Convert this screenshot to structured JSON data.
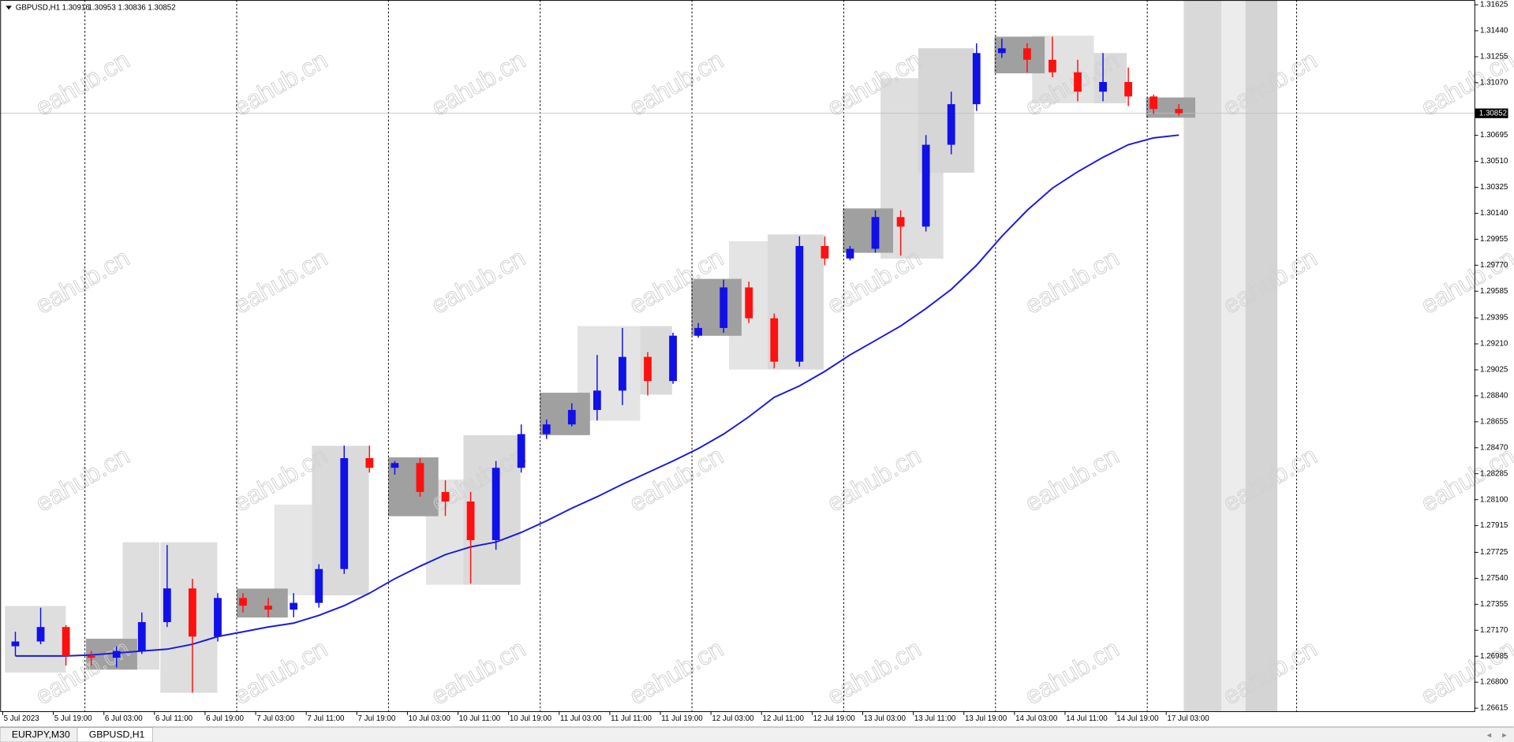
{
  "chart_data": {
    "type": "candlestick",
    "symbol": "GBPUSD,H1",
    "header_ohlc": [
      1.30916,
      1.30953,
      1.30836,
      1.30852
    ],
    "x": [
      "5 Jul 11:00",
      "5 Jul 15:00",
      "5 Jul 19:00",
      "5 Jul 23:00",
      "6 Jul 03:00",
      "6 Jul 07:00",
      "6 Jul 11:00",
      "6 Jul 15:00",
      "6 Jul 19:00",
      "6 Jul 23:00",
      "7 Jul 03:00",
      "7 Jul 07:00",
      "7 Jul 11:00",
      "7 Jul 15:00",
      "7 Jul 19:00",
      "7 Jul 23:00",
      "10 Jul 03:00",
      "10 Jul 07:00",
      "10 Jul 11:00",
      "10 Jul 15:00",
      "10 Jul 19:00",
      "10 Jul 23:00",
      "11 Jul 03:00",
      "11 Jul 07:00",
      "11 Jul 11:00",
      "11 Jul 15:00",
      "11 Jul 19:00",
      "11 Jul 23:00",
      "12 Jul 03:00",
      "12 Jul 07:00",
      "12 Jul 11:00",
      "12 Jul 15:00",
      "12 Jul 19:00",
      "12 Jul 23:00",
      "13 Jul 03:00",
      "13 Jul 07:00",
      "13 Jul 11:00",
      "13 Jul 15:00",
      "13 Jul 19:00",
      "13 Jul 23:00",
      "14 Jul 03:00",
      "14 Jul 07:00",
      "14 Jul 11:00",
      "14 Jul 15:00",
      "14 Jul 19:00",
      "14 Jul 23:00",
      "17 Jul 03:00"
    ],
    "open": [
      1.27056,
      1.2709,
      1.27193,
      1.26987,
      1.26974,
      1.27022,
      1.27228,
      1.27468,
      1.27125,
      1.274,
      1.27345,
      1.27317,
      1.27365,
      1.27606,
      1.28396,
      1.28327,
      1.28361,
      1.28155,
      1.28087,
      1.27812,
      1.28327,
      1.28567,
      1.28636,
      1.28739,
      1.28877,
      1.29117,
      1.28945,
      1.29268,
      1.29323,
      1.29612,
      1.29392,
      1.29083,
      1.29907,
      1.29818,
      1.29887,
      1.30113,
      1.30045,
      1.30628,
      1.30917,
      1.31281,
      1.31315,
      1.31233,
      1.31144,
      1.31006,
      1.31075,
      1.30972,
      1.30883
    ],
    "high": [
      1.27159,
      1.27331,
      1.27207,
      1.27022,
      1.27056,
      1.27297,
      1.27777,
      1.27537,
      1.27434,
      1.27434,
      1.274,
      1.27434,
      1.2764,
      1.28485,
      1.28485,
      1.28375,
      1.28396,
      1.28238,
      1.28155,
      1.28375,
      1.28636,
      1.28671,
      1.28787,
      1.29131,
      1.29323,
      1.29151,
      1.29289,
      1.29358,
      1.29667,
      1.29653,
      1.29426,
      1.29976,
      1.29976,
      1.29907,
      1.30161,
      1.30161,
      1.30697,
      1.31006,
      1.3135,
      1.31384,
      1.3135,
      1.31398,
      1.31233,
      1.31281,
      1.31178,
      1.30986,
      1.30917
    ],
    "low": [
      1.26987,
      1.2707,
      1.26919,
      1.26919,
      1.26905,
      1.27001,
      1.27193,
      1.26726,
      1.2709,
      1.27297,
      1.27262,
      1.27262,
      1.27331,
      1.27571,
      1.28293,
      1.28279,
      1.28121,
      1.27984,
      1.27503,
      1.27743,
      1.28293,
      1.28533,
      1.28622,
      1.28664,
      1.28774,
      1.28842,
      1.28925,
      1.29254,
      1.29289,
      1.29358,
      1.29035,
      1.29048,
      1.2977,
      1.29804,
      1.29859,
      1.29838,
      1.3001,
      1.3056,
      1.30869,
      1.31247,
      1.31144,
      1.31109,
      1.30938,
      1.30938,
      1.30903,
      1.30848,
      1.30835
    ],
    "close": [
      1.2709,
      1.27193,
      1.26987,
      1.26974,
      1.27022,
      1.27228,
      1.27468,
      1.27125,
      1.274,
      1.27345,
      1.27317,
      1.27365,
      1.27606,
      1.28396,
      1.28327,
      1.28361,
      1.28155,
      1.28087,
      1.27812,
      1.28327,
      1.28567,
      1.28636,
      1.28739,
      1.28877,
      1.29117,
      1.28945,
      1.29268,
      1.29323,
      1.29612,
      1.29392,
      1.29083,
      1.29907,
      1.29818,
      1.29887,
      1.30113,
      1.30045,
      1.30628,
      1.30917,
      1.31281,
      1.31315,
      1.31233,
      1.31144,
      1.31006,
      1.31075,
      1.30972,
      1.30883,
      1.30852
    ],
    "up_color": "#1010e8",
    "down_color": "#ff1010",
    "ma": {
      "color": "#1a1ae0",
      "values": [
        1.26987,
        1.26987,
        1.26987,
        1.26994,
        1.27008,
        1.27022,
        1.27035,
        1.2707,
        1.27125,
        1.27159,
        1.27193,
        1.27221,
        1.27276,
        1.27345,
        1.27434,
        1.27537,
        1.27626,
        1.27709,
        1.27764,
        1.27798,
        1.27867,
        1.27949,
        1.28039,
        1.28121,
        1.2821,
        1.28293,
        1.28375,
        1.28464,
        1.28567,
        1.28691,
        1.28829,
        1.28911,
        1.29014,
        1.29131,
        1.29234,
        1.29337,
        1.29461,
        1.29598,
        1.2977,
        1.29976,
        1.30161,
        1.30319,
        1.30436,
        1.30539,
        1.30628,
        1.30677,
        1.30697
      ]
    },
    "bid": 1.30852,
    "ylim": [
      1.26594,
      1.31659
    ],
    "yticks": [
      1.31625,
      {
        "value": 1.3144,
        "label": "1.31440"
      },
      1.31255,
      {
        "value": 1.3107,
        "label": "1.31070"
      },
      1.30695,
      {
        "value": 1.3051,
        "label": "1.30510"
      },
      1.30325,
      {
        "value": 1.3014,
        "label": "1.30140"
      },
      1.29955,
      {
        "value": 1.2977,
        "label": "1.29770"
      },
      1.29585,
      1.29395,
      {
        "value": 1.2921,
        "label": "1.29210"
      },
      1.29025,
      {
        "value": 1.2884,
        "label": "1.28840"
      },
      1.28655,
      {
        "value": 1.2847,
        "label": "1.28470"
      },
      1.28285,
      {
        "value": 1.281,
        "label": "1.28100"
      },
      1.27915,
      1.27725,
      {
        "value": 1.2754,
        "label": "1.27540"
      },
      1.27355,
      {
        "value": 1.2717,
        "label": "1.27170"
      },
      1.26985,
      {
        "value": 1.268,
        "label": "1.26800"
      },
      1.26615
    ],
    "xticks": [
      {
        "value": "5 Jul 11:00",
        "label": "5 Jul 2023"
      },
      "5 Jul 19:00",
      "6 Jul 03:00",
      "6 Jul 11:00",
      "6 Jul 19:00",
      "7 Jul 03:00",
      "7 Jul 11:00",
      "7 Jul 19:00",
      "10 Jul 03:00",
      "10 Jul 11:00",
      "10 Jul 19:00",
      "11 Jul 03:00",
      "11 Jul 11:00",
      "11 Jul 19:00",
      "12 Jul 03:00",
      "12 Jul 11:00",
      "12 Jul 19:00",
      "13 Jul 03:00",
      "13 Jul 11:00",
      "13 Jul 19:00",
      "14 Jul 03:00",
      "14 Jul 11:00",
      "14 Jul 19:00",
      "17 Jul 03:00"
    ],
    "grid": false
  },
  "watermark": "eahub.cn",
  "tabs": [
    "EURJPY,M30",
    "GBPUSD,H1"
  ]
}
